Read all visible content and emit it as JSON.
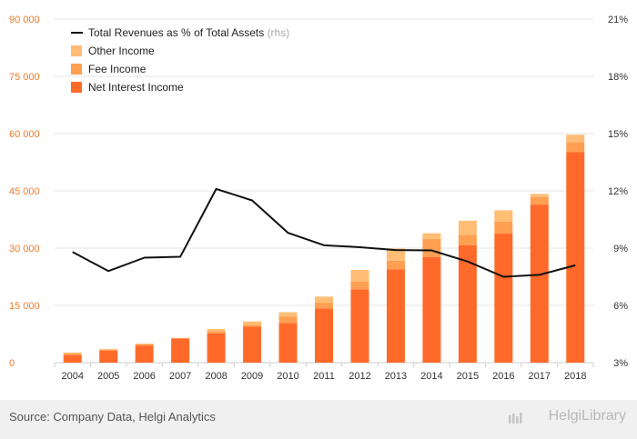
{
  "chart_data": {
    "type": "bar",
    "categories": [
      "2004",
      "2005",
      "2006",
      "2007",
      "2008",
      "2009",
      "2010",
      "2011",
      "2012",
      "2013",
      "2014",
      "2015",
      "2016",
      "2017",
      "2018"
    ],
    "series": [
      {
        "name": "Net Interest Income",
        "color": "#ff6a2a",
        "values": [
          2000,
          3100,
          4500,
          6300,
          7700,
          9400,
          10400,
          14200,
          19200,
          24400,
          27700,
          30800,
          33800,
          41400,
          55200
        ]
      },
      {
        "name": "Fee Income",
        "color": "#ff9f52",
        "values": [
          400,
          300,
          350,
          100,
          500,
          500,
          1700,
          1500,
          2000,
          2300,
          4700,
          2700,
          3100,
          2000,
          2600
        ]
      },
      {
        "name": "Other Income",
        "color": "#ffbd75",
        "values": [
          250,
          200,
          150,
          100,
          600,
          900,
          1100,
          1600,
          3100,
          3200,
          1500,
          3700,
          3000,
          800,
          1900
        ]
      }
    ],
    "line": {
      "name": "Total Revenues as % of Total Assets",
      "suffix": "(rhs)",
      "color": "#111111",
      "values": [
        8.8,
        7.8,
        8.5,
        8.55,
        12.1,
        11.5,
        9.8,
        9.15,
        9.05,
        8.9,
        8.88,
        8.3,
        7.5,
        7.6,
        8.1
      ]
    },
    "y_left": {
      "ylim": [
        0,
        90000
      ],
      "ticks": [
        "0",
        "15 000",
        "30 000",
        "45 000",
        "60 000",
        "75 000",
        "90 000"
      ],
      "color": "#f07a2a"
    },
    "y_right": {
      "ylim": [
        3,
        21
      ],
      "ticks": [
        "3%",
        "6%",
        "9%",
        "12%",
        "15%",
        "18%",
        "21%"
      ]
    },
    "legend_position": "top-left",
    "grid": true
  },
  "footer": {
    "source": "Source: Company Data, Helgi Analytics",
    "brand": "HelgiLibrary"
  }
}
